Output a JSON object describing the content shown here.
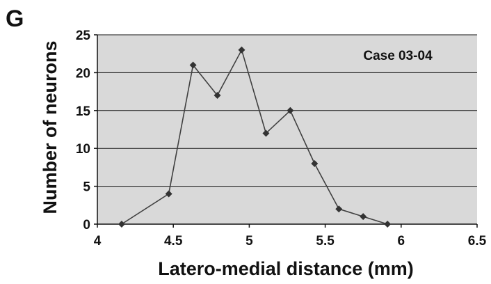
{
  "panel_label": "G",
  "chart_data": {
    "type": "line",
    "title": "",
    "annotation": "Case 03-04",
    "xlabel": "Latero-medial distance (mm)",
    "ylabel": "Number of neurons",
    "xlim": [
      4,
      6.5
    ],
    "ylim": [
      0,
      25
    ],
    "xticks": [
      "4",
      "4.5",
      "5",
      "5.5",
      "6",
      "6.5"
    ],
    "yticks": [
      "0",
      "5",
      "10",
      "15",
      "20",
      "25"
    ],
    "grid": "horizontal",
    "legend": "none",
    "plot_background": "#d9d9d9",
    "line_color": "#404040",
    "marker": "diamond",
    "series": [
      {
        "x": [
          4.16,
          4.47,
          4.63,
          4.79,
          4.95,
          5.11,
          5.27,
          5.43,
          5.59,
          5.75,
          5.91
        ],
        "y": [
          0,
          4,
          21,
          17,
          23,
          12,
          15,
          8,
          2,
          1,
          0
        ]
      }
    ]
  }
}
